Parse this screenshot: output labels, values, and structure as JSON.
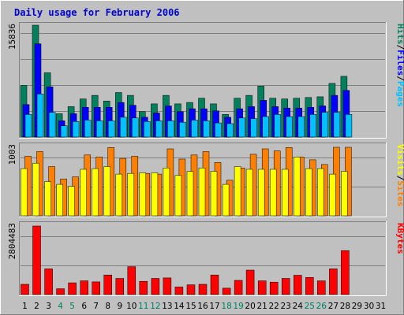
{
  "title": "Daily usage for February 2006",
  "colors": {
    "background": "#c0c0c0",
    "title": "#0000cc",
    "hits": "#00805c",
    "files": "#0000ff",
    "pages": "#00c0ff",
    "visits": "#ffff00",
    "sites": "#ff8000",
    "kbytes": "#ff0000",
    "weekend_day": "#00805c",
    "weekday": "#000000"
  },
  "chart_data": [
    {
      "type": "bar",
      "name": "hits-files-pages",
      "ymax_label": "15836",
      "ylim": [
        0,
        15836
      ],
      "legend": [
        {
          "label": "Pages",
          "color": "#00c0ff"
        },
        {
          "label": "Files",
          "color": "#0000ff"
        },
        {
          "label": "Hits",
          "color": "#00805c"
        }
      ],
      "categories": [
        1,
        2,
        3,
        4,
        5,
        6,
        7,
        8,
        9,
        10,
        11,
        12,
        13,
        14,
        15,
        16,
        17,
        18,
        19,
        20,
        21,
        22,
        23,
        24,
        25,
        26,
        27,
        28
      ],
      "series": [
        {
          "name": "Hits",
          "color": "#00805c",
          "values": [
            7300,
            15836,
            9100,
            3300,
            4300,
            5400,
            5900,
            5100,
            6300,
            5900,
            3600,
            4700,
            5900,
            4700,
            4900,
            5500,
            4700,
            3200,
            5500,
            5900,
            7200,
            5500,
            5400,
            5500,
            5600,
            5700,
            7600,
            8600
          ]
        },
        {
          "name": "Files",
          "color": "#0000ff",
          "values": [
            4600,
            13200,
            7100,
            2300,
            3300,
            4200,
            4200,
            4200,
            4900,
            4500,
            2800,
            3400,
            4400,
            3600,
            4000,
            4000,
            3700,
            2800,
            4000,
            4300,
            5200,
            4300,
            4100,
            4100,
            4200,
            4400,
            5900,
            6600
          ]
        },
        {
          "name": "Pages",
          "color": "#00c0ff",
          "values": [
            3200,
            6100,
            3500,
            1600,
            2200,
            2400,
            2300,
            2300,
            2800,
            2700,
            2200,
            2300,
            2300,
            2100,
            2400,
            2300,
            2000,
            1900,
            2700,
            2600,
            2900,
            3200,
            2900,
            2900,
            3200,
            3500,
            3500,
            3200
          ]
        }
      ]
    },
    {
      "type": "bar",
      "name": "visits-sites",
      "ymax_label": "1003",
      "ylim": [
        0,
        1003
      ],
      "legend": [
        {
          "label": "Sites",
          "color": "#ff8000"
        },
        {
          "label": "Visits",
          "color": "#ffff00"
        }
      ],
      "categories": [
        1,
        2,
        3,
        4,
        5,
        6,
        7,
        8,
        9,
        10,
        11,
        12,
        13,
        14,
        15,
        16,
        17,
        18,
        19,
        20,
        21,
        22,
        23,
        24,
        25,
        26,
        27,
        28
      ],
      "series": [
        {
          "name": "Sites",
          "color": "#ff8000",
          "values": [
            870,
            940,
            720,
            540,
            570,
            890,
            860,
            1000,
            840,
            870,
            620,
            610,
            980,
            830,
            890,
            940,
            780,
            520,
            700,
            900,
            980,
            950,
            1000,
            860,
            820,
            750,
            1003,
            1003
          ]
        },
        {
          "name": "Visits",
          "color": "#ffff00",
          "values": [
            690,
            770,
            500,
            460,
            430,
            680,
            690,
            720,
            610,
            620,
            630,
            630,
            700,
            590,
            650,
            700,
            650,
            460,
            720,
            680,
            680,
            680,
            680,
            860,
            690,
            690,
            610,
            650
          ]
        }
      ]
    },
    {
      "type": "bar",
      "name": "kbytes",
      "ymax_label": "2804483",
      "ylim": [
        0,
        2804483
      ],
      "legend": [
        {
          "label": "KBytes",
          "color": "#ff0000"
        }
      ],
      "categories": [
        1,
        2,
        3,
        4,
        5,
        6,
        7,
        8,
        9,
        10,
        11,
        12,
        13,
        14,
        15,
        16,
        17,
        18,
        19,
        20,
        21,
        22,
        23,
        24,
        25,
        26,
        27,
        28
      ],
      "series": [
        {
          "name": "KBytes",
          "color": "#ff0000",
          "values": [
            420000,
            2804483,
            1050000,
            240000,
            480000,
            560000,
            520000,
            800000,
            660000,
            1140000,
            540000,
            660000,
            680000,
            310000,
            400000,
            420000,
            800000,
            260000,
            580000,
            1000000,
            560000,
            510000,
            660000,
            790000,
            700000,
            560000,
            1050000,
            1800000
          ]
        }
      ]
    }
  ],
  "day_labels": [
    {
      "text": "1",
      "weekend": false
    },
    {
      "text": "2",
      "weekend": false
    },
    {
      "text": "3",
      "weekend": false
    },
    {
      "text": "4",
      "weekend": true
    },
    {
      "text": "5",
      "weekend": true
    },
    {
      "text": "6",
      "weekend": false
    },
    {
      "text": "7",
      "weekend": false
    },
    {
      "text": "8",
      "weekend": false
    },
    {
      "text": "9",
      "weekend": false
    },
    {
      "text": "10",
      "weekend": false
    },
    {
      "text": "11",
      "weekend": true
    },
    {
      "text": "12",
      "weekend": true
    },
    {
      "text": "13",
      "weekend": false
    },
    {
      "text": "14",
      "weekend": false
    },
    {
      "text": "15",
      "weekend": false
    },
    {
      "text": "16",
      "weekend": false
    },
    {
      "text": "17",
      "weekend": false
    },
    {
      "text": "18",
      "weekend": true
    },
    {
      "text": "19",
      "weekend": true
    },
    {
      "text": "20",
      "weekend": false
    },
    {
      "text": "21",
      "weekend": false
    },
    {
      "text": "22",
      "weekend": false
    },
    {
      "text": "23",
      "weekend": false
    },
    {
      "text": "24",
      "weekend": false
    },
    {
      "text": "25",
      "weekend": true
    },
    {
      "text": "26",
      "weekend": true
    },
    {
      "text": "27",
      "weekend": false
    },
    {
      "text": "28",
      "weekend": false
    },
    {
      "text": "29",
      "weekend": false
    },
    {
      "text": "30",
      "weekend": false
    },
    {
      "text": "31",
      "weekend": false
    }
  ]
}
